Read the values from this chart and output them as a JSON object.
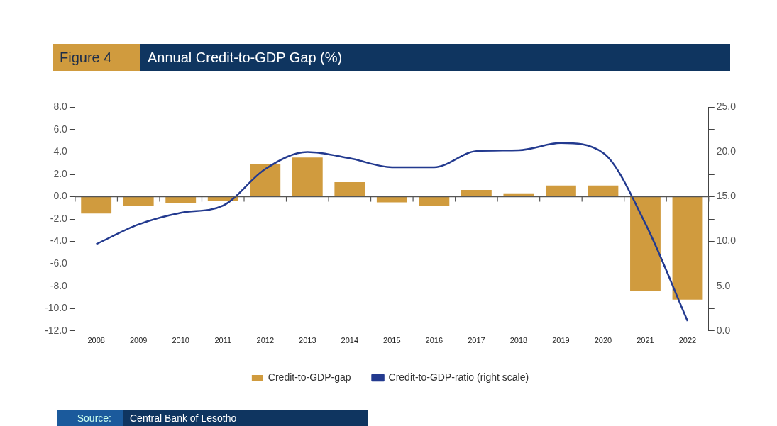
{
  "chart_data": {
    "type": "bar",
    "subtitle": "Figure 4",
    "title": "Annual Credit-to-GDP Gap (%)",
    "categories": [
      "2008",
      "2009",
      "2010",
      "2011",
      "2012",
      "2013",
      "2014",
      "2015",
      "2016",
      "2017",
      "2018",
      "2019",
      "2020",
      "2021",
      "2022"
    ],
    "series": [
      {
        "name": "Credit-to-GDP-gap",
        "color": "#d09b3e",
        "values": [
          -1.5,
          -0.8,
          -0.6,
          -0.4,
          2.9,
          3.5,
          1.3,
          -0.5,
          -0.8,
          0.6,
          0.3,
          1.0,
          1.0,
          -8.4,
          -9.2
        ]
      },
      {
        "name": "Credit-to-GDP-ratio (right scale)",
        "type": "line",
        "axis": "y2",
        "color": "#233a8f",
        "values": [
          9.7,
          11.9,
          13.2,
          14.0,
          18.1,
          20.0,
          19.3,
          18.3,
          18.3,
          20.1,
          20.2,
          21.0,
          19.9,
          12.0,
          1.1
        ]
      }
    ],
    "ylim": [
      -12,
      8
    ],
    "yticks": [
      {
        "value": -12,
        "label": "-12.0"
      },
      {
        "value": -10,
        "label": "-10.0"
      },
      {
        "value": -8,
        "label": "-8.0"
      },
      {
        "value": -6,
        "label": "-6.0"
      },
      {
        "value": -4,
        "label": "-4.0"
      },
      {
        "value": -2,
        "label": "-2.0"
      },
      {
        "value": 0,
        "label": "0.0"
      },
      {
        "value": 2,
        "label": "2.0"
      },
      {
        "value": 4,
        "label": "4.0"
      },
      {
        "value": 6,
        "label": "6.0"
      },
      {
        "value": 8,
        "label": "8.0"
      }
    ],
    "y2lim": [
      0,
      25
    ],
    "y2ticks": [
      {
        "value": 0,
        "label": "0.0"
      },
      {
        "value": 2.5,
        "label": null
      },
      {
        "value": 5,
        "label": "5.0"
      },
      {
        "value": 7.5,
        "label": null
      },
      {
        "value": 10,
        "label": "10.0"
      },
      {
        "value": 12.5,
        "label": null
      },
      {
        "value": 15,
        "label": "15.0"
      },
      {
        "value": 17.5,
        "label": null
      },
      {
        "value": 20,
        "label": "20.0"
      },
      {
        "value": 22.5,
        "label": null
      },
      {
        "value": 25,
        "label": "25.0"
      }
    ],
    "legend": "bottom",
    "marker": "none",
    "line_style": "solid",
    "annotations": [
      "Source:",
      "Central Bank of Lesotho"
    ]
  }
}
